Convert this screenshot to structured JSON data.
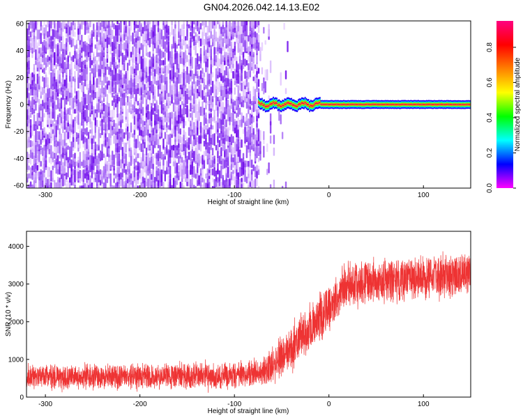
{
  "title": "GN04.2026.042.14.13.E02",
  "chart_data": [
    {
      "type": "heatmap",
      "xlabel": "Height of straight line (km)",
      "ylabel": "Frequency (Hz)",
      "xlim": [
        -320,
        150
      ],
      "ylim": [
        -62,
        62
      ],
      "xticks": [
        -300,
        -200,
        -100,
        0,
        100
      ],
      "yticks": [
        60,
        40,
        20,
        0,
        -20,
        -40,
        -60
      ],
      "colorbar": {
        "label": "Normalized spectral amplitude",
        "range": [
          0.0,
          0.95
        ],
        "ticks": [
          0.0,
          0.2,
          0.4,
          0.6,
          0.8
        ],
        "stops": [
          "#ff00ff",
          "#0000ff",
          "#00ffff",
          "#00ff00",
          "#ffff00",
          "#ff8000",
          "#ff0000",
          "#ff0080"
        ]
      },
      "features": {
        "noise_extent_km": [
          -320,
          -75
        ],
        "sparse_noise_extent_km": [
          -75,
          -40
        ],
        "signal_band_start_km": -75,
        "signal_band_end_km": 150,
        "signal_band_freq_hz": 0,
        "signal_band_halfwidth_hz": 2.5,
        "noise_peak_amplitude": 0.15
      }
    },
    {
      "type": "line",
      "xlabel": "Height of straight line (km)",
      "ylabel": "SNR (10 * v/v)",
      "xlim": [
        -320,
        150
      ],
      "ylim": [
        0,
        4400
      ],
      "xticks": [
        -300,
        -200,
        -100,
        0,
        100
      ],
      "yticks": [
        0,
        1000,
        2000,
        3000,
        4000
      ],
      "series": [
        {
          "name": "SNR",
          "color": "#ee3333",
          "trend_points": [
            {
              "x": -320,
              "mean": 560,
              "spread": 500
            },
            {
              "x": -250,
              "mean": 540,
              "spread": 500
            },
            {
              "x": -150,
              "mean": 560,
              "spread": 520
            },
            {
              "x": -100,
              "mean": 580,
              "spread": 520
            },
            {
              "x": -70,
              "mean": 650,
              "spread": 560
            },
            {
              "x": -55,
              "mean": 950,
              "spread": 800
            },
            {
              "x": -40,
              "mean": 1300,
              "spread": 900
            },
            {
              "x": -20,
              "mean": 1900,
              "spread": 1000
            },
            {
              "x": 0,
              "mean": 2400,
              "spread": 1000
            },
            {
              "x": 20,
              "mean": 3000,
              "spread": 900
            },
            {
              "x": 50,
              "mean": 3100,
              "spread": 850
            },
            {
              "x": 100,
              "mean": 3150,
              "spread": 850
            },
            {
              "x": 150,
              "mean": 3250,
              "spread": 850
            }
          ]
        }
      ]
    }
  ]
}
